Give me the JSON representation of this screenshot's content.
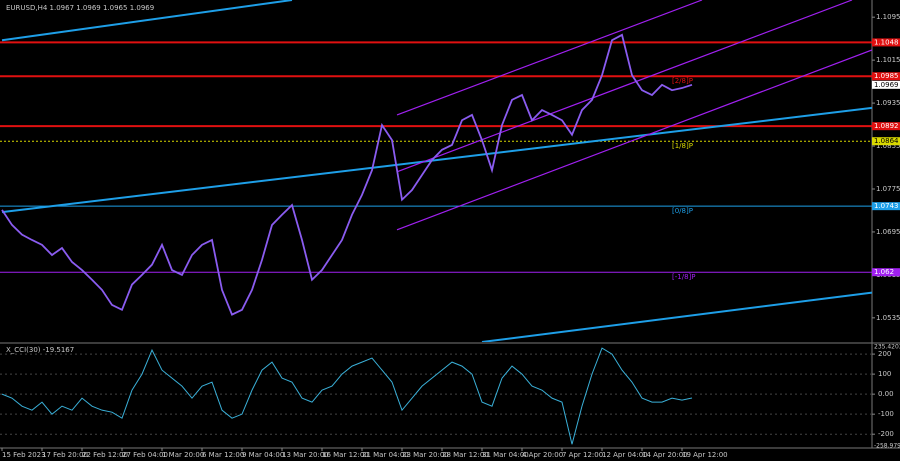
{
  "chart_data": {
    "type": "line",
    "title": "EURUSD,H4  1.0967 1.0969 1.0965 1.0969",
    "xticks": [
      "15 Feb 2023",
      "17 Feb 20:00",
      "22 Feb 12:00",
      "27 Feb 04:00",
      "1 Mar 20:00",
      "6 Mar 12:00",
      "9 Mar 04:00",
      "13 Mar 20:00",
      "16 Mar 12:00",
      "21 Mar 04:00",
      "23 Mar 20:00",
      "28 Mar 12:00",
      "31 Mar 04:00",
      "4 Apr 20:00",
      "7 Apr 12:00",
      "12 Apr 04:00",
      "14 Apr 20:00",
      "19 Apr 12:00"
    ],
    "ylim": [
      1.049,
      1.1127
    ],
    "yticks": [
      1.1095,
      1.1015,
      1.0935,
      1.0855,
      1.0775,
      1.0695,
      1.0615,
      1.0535
    ],
    "series": [
      {
        "name": "EURUSD,H4",
        "color": "#8a5cf0",
        "values": [
          1.0736,
          1.0708,
          1.069,
          1.068,
          1.0671,
          1.0652,
          1.0665,
          1.0639,
          1.0624,
          1.0606,
          1.0587,
          1.0559,
          1.055,
          1.0597,
          1.0615,
          1.0634,
          1.0671,
          1.0624,
          1.0615,
          1.0652,
          1.0671,
          1.068,
          1.0587,
          1.0541,
          1.055,
          1.0587,
          1.0643,
          1.0708,
          1.0727,
          1.0745,
          1.068,
          1.0606,
          1.0624,
          1.0652,
          1.068,
          1.0727,
          1.0764,
          1.081,
          1.0894,
          1.0866,
          1.0755,
          1.0773,
          1.0801,
          1.0829,
          1.0848,
          1.0857,
          1.0903,
          1.0913,
          1.0866,
          1.081,
          1.0894,
          1.0941,
          1.095,
          1.0903,
          1.0922,
          1.0913,
          1.0903,
          1.0876,
          1.0922,
          1.0941,
          1.0987,
          1.1052,
          1.1062,
          1.0987,
          1.0959,
          1.095,
          1.0969,
          1.0959,
          1.0963,
          1.0969
        ]
      }
    ],
    "last_price": 1.0969,
    "levels": [
      {
        "value": 1.1048,
        "color": "#e01010"
      },
      {
        "value": 1.0985,
        "color": "#e01010",
        "label": "[2/8]P"
      },
      {
        "value": 1.0892,
        "color": "#e01010"
      },
      {
        "value": 1.0864,
        "color": "#d8d800",
        "label": "[1/8]P"
      },
      {
        "value": 1.0743,
        "color": "#1e9fe8",
        "label": "[0/8]P"
      },
      {
        "value": 1.062,
        "color": "#a020f0",
        "label": "[-1/8]P"
      }
    ],
    "trendlines": [
      {
        "color": "#1e9fe8",
        "from": [
          0,
          1.1052
        ],
        "to": [
          29,
          1.1127
        ]
      },
      {
        "color": "#1e9fe8",
        "from": [
          0,
          1.0732
        ],
        "to": [
          87,
          1.0926
        ]
      },
      {
        "color": "#1e9fe8",
        "from": [
          48,
          1.049
        ],
        "to": [
          87,
          1.0582
        ]
      },
      {
        "color": "#a020f0",
        "from": [
          39.5,
          1.0913
        ],
        "to": [
          70,
          1.1127
        ]
      },
      {
        "color": "#a020f0",
        "from": [
          39.5,
          1.0807
        ],
        "to": [
          85,
          1.1127
        ]
      },
      {
        "color": "#a020f0",
        "from": [
          39.5,
          1.0699
        ],
        "to": [
          87,
          1.1034
        ]
      }
    ],
    "indicator": {
      "title": "X_CCI(30) -19.5167",
      "color": "#3ab0d8",
      "y2lim": [
        -258.9799,
        235.4203
      ],
      "y2ticks": [
        200,
        100,
        {
          "value": 0,
          "label": "0.00"
        },
        -100,
        -200
      ],
      "values": [
        0,
        -20,
        -60,
        -80,
        -40,
        -100,
        -60,
        -80,
        -20,
        -60,
        -80,
        -90,
        -120,
        20,
        100,
        220,
        120,
        80,
        40,
        -20,
        40,
        60,
        -80,
        -120,
        -100,
        20,
        120,
        160,
        80,
        60,
        -20,
        -40,
        20,
        40,
        100,
        140,
        160,
        180,
        120,
        60,
        -80,
        -20,
        40,
        80,
        120,
        160,
        140,
        100,
        -40,
        -60,
        80,
        140,
        100,
        40,
        20,
        -20,
        -40,
        -250,
        -60,
        100,
        230,
        200,
        120,
        60,
        -20,
        -40,
        -40,
        -20,
        -30,
        -19.5167
      ]
    }
  }
}
